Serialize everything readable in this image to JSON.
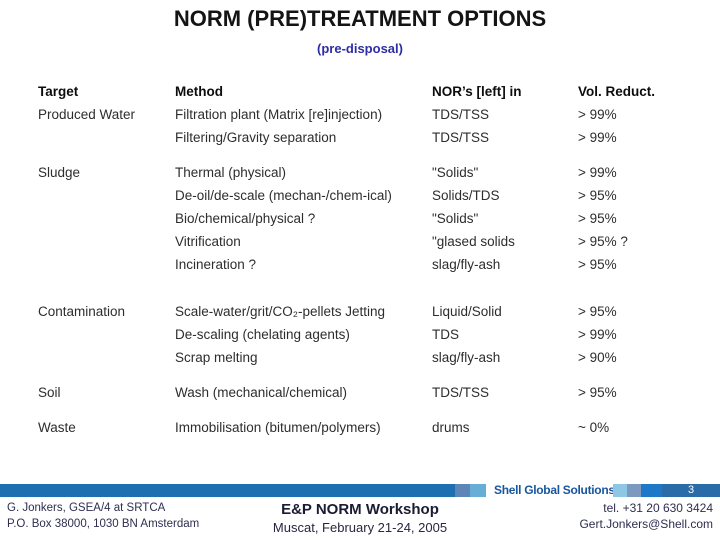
{
  "slide": {
    "title": "NORM (PRE)TREATMENT OPTIONS",
    "subtitle": "(pre-disposal)"
  },
  "table": {
    "headers": [
      "Target",
      "Method",
      "NOR’s [left] in",
      "Vol. Reduct."
    ],
    "rows": [
      {
        "target": "Produced Water",
        "method": "Filtration plant (Matrix [re]injection)",
        "nor": "TDS/TSS",
        "vol": "> 99%",
        "gap": 0
      },
      {
        "target": "",
        "method": "Filtering/Gravity separation",
        "nor": "TDS/TSS",
        "vol": "> 99%",
        "gap": 0
      },
      {
        "target": "Sludge",
        "method": "Thermal (physical)",
        "nor": "\"Solids\"",
        "vol": "> 99%",
        "gap": 12
      },
      {
        "target": "",
        "method": "De-oil/de-scale (mechan-/chem-ical)",
        "nor": "Solids/TDS",
        "vol": "> 95%",
        "gap": 0
      },
      {
        "target": "",
        "method": "Bio/chemical/physical ?",
        "nor": "\"Solids\"",
        "vol": "> 95%",
        "gap": 0
      },
      {
        "target": "",
        "method": "Vitrification",
        "nor": "\"glased solids",
        "vol": "> 95% ?",
        "gap": 0
      },
      {
        "target": "",
        "method": "Incineration ?",
        "nor": "slag/fly-ash",
        "vol": "> 95%",
        "gap": 0
      },
      {
        "target": "Contamination",
        "method": "Scale-water/grit/CO₂-pellets Jetting",
        "nor": "Liquid/Solid",
        "vol": "> 95%",
        "gap": 24
      },
      {
        "target": "",
        "method": "De-scaling (chelating agents)",
        "nor": "TDS",
        "vol": "> 99%",
        "gap": 0
      },
      {
        "target": "",
        "method": "Scrap melting",
        "nor": "slag/fly-ash",
        "vol": "> 90%",
        "gap": 0
      },
      {
        "target": "Soil",
        "method": "Wash (mechanical/chemical)",
        "nor": "TDS/TSS",
        "vol": "> 95%",
        "gap": 12
      },
      {
        "target": "Waste",
        "method": "Immobilisation (bitumen/polymers)",
        "nor": "drums",
        "vol": "~ 0%",
        "gap": 12
      }
    ]
  },
  "footer": {
    "brand": "Shell Global Solutions",
    "page_number": "3",
    "author_line1": "G. Jonkers, GSEA/4 at SRTCA",
    "author_line2": "P.O. Box 38000, 1030 BN Amsterdam",
    "event_title": "E&P NORM Workshop",
    "event_detail": "Muscat, February 21-24, 2005",
    "contact_tel": "tel. +31 20 630 3424",
    "contact_email": "Gert.Jonkers@Shell.com"
  },
  "colors": {
    "bar-blue": "#1e6fb2",
    "bar-blue-bright": "#1d79c8",
    "bar-blue-right": "#2a6ca8",
    "sq-slate": "#5e85b8",
    "sq-light": "#66aed6",
    "sq-pale": "#8ec6e6",
    "sq-gray-blue": "#7e99c0",
    "brand-blue": "#17569e",
    "subtitle-blue": "#2d2da5",
    "text-dark": "#2d2d2d",
    "footer-navy": "#2e2e50"
  }
}
